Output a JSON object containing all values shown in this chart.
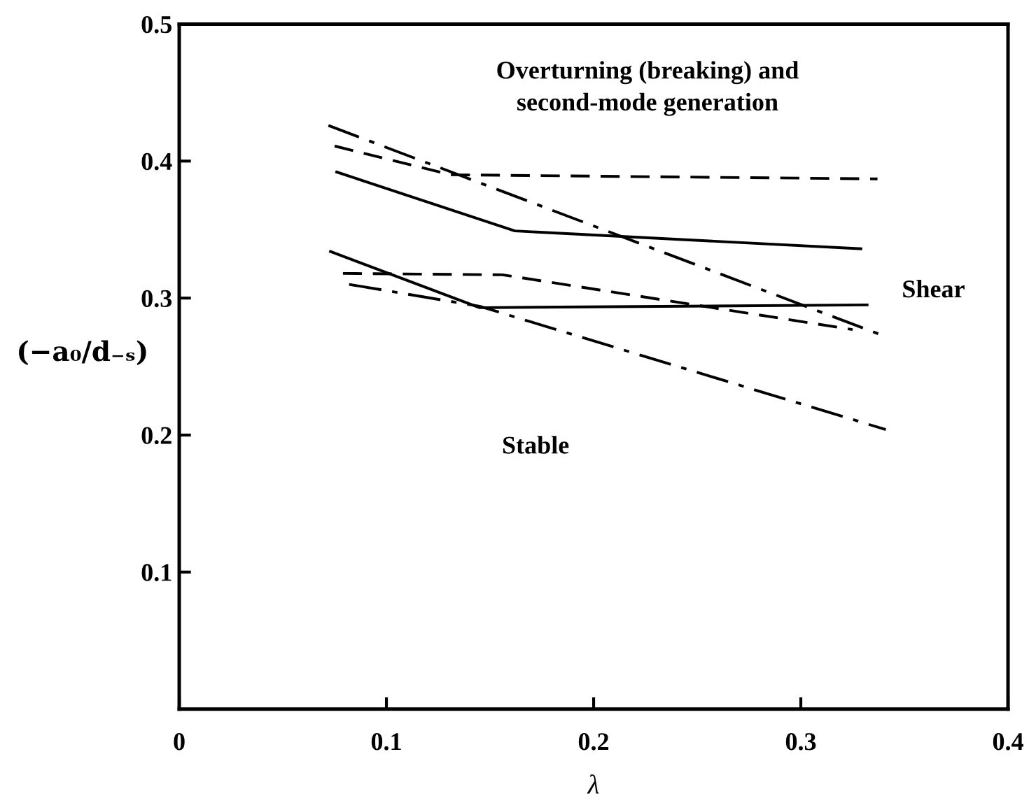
{
  "chart_data": {
    "type": "line",
    "xlabel": "λ",
    "ylabel": "(−a₀/d₋ₛ)",
    "xlim": [
      0,
      0.4
    ],
    "ylim": [
      0,
      0.5
    ],
    "xticks": [
      0,
      0.1,
      0.2,
      0.3,
      0.4
    ],
    "yticks": [
      0.1,
      0.2,
      0.3,
      0.4,
      0.5
    ],
    "grid": false,
    "legend": false,
    "marker": "none",
    "annotations": [
      "Overturning (breaking) and\nsecond-mode generation",
      "Shear",
      "Stable"
    ],
    "series": [
      {
        "color": "#000000",
        "line_style": "solid",
        "x": [
          0.076,
          0.162,
          0.329
        ],
        "values": [
          0.392,
          0.349,
          0.336
        ]
      },
      {
        "color": "#000000",
        "line_style": "solid",
        "x": [
          0.073,
          0.145,
          0.332
        ],
        "values": [
          0.334,
          0.293,
          0.295
        ]
      },
      {
        "color": "#000000",
        "line_style": "dashed",
        "x": [
          0.075,
          0.131,
          0.337
        ],
        "values": [
          0.411,
          0.39,
          0.387
        ]
      },
      {
        "color": "#000000",
        "line_style": "dashed",
        "x": [
          0.079,
          0.156,
          0.325
        ],
        "values": [
          0.318,
          0.317,
          0.277
        ]
      },
      {
        "color": "#000000",
        "line_style": "dashdot",
        "x": [
          0.072,
          0.339
        ],
        "values": [
          0.426,
          0.273
        ]
      },
      {
        "color": "#000000",
        "line_style": "dashdot",
        "x": [
          0.082,
          0.145,
          0.341
        ],
        "values": [
          0.31,
          0.294,
          0.204
        ]
      }
    ]
  }
}
